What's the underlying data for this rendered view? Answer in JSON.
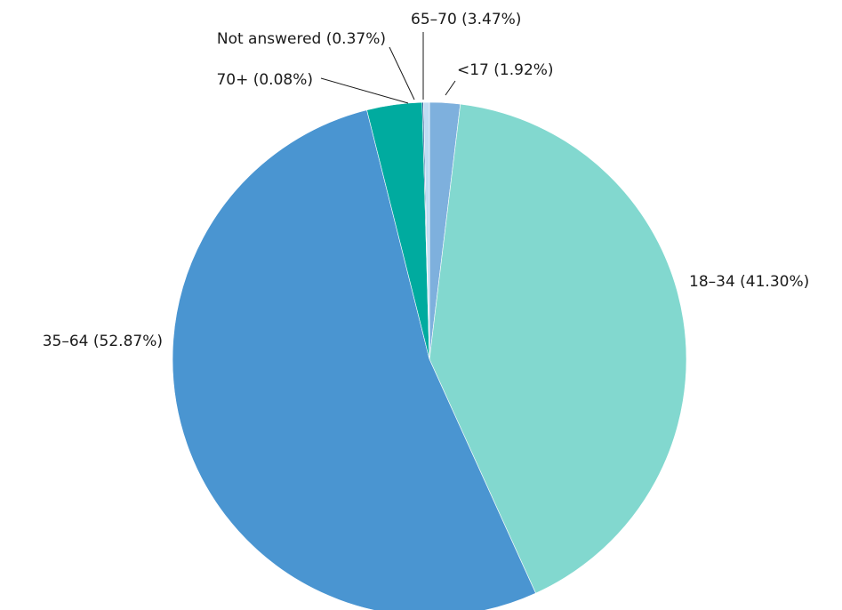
{
  "chart_data": {
    "type": "pie",
    "start_angle_deg": 0,
    "direction": "clockwise",
    "slices": [
      {
        "label": "<17",
        "value": 1.92,
        "label_text": "<17 (1.92%)",
        "color": "#7eb0dd"
      },
      {
        "label": "18–34",
        "value": 41.3,
        "label_text": "18–34 (41.30%)",
        "color": "#82d8cf"
      },
      {
        "label": "35–64",
        "value": 52.87,
        "label_text": "35–64 (52.87%)",
        "color": "#4a95d1"
      },
      {
        "label": "65–70",
        "value": 3.47,
        "label_text": "65–70 (3.47%)",
        "color": "#00ab9f"
      },
      {
        "label": "70+",
        "value": 0.08,
        "label_text": "70+ (0.08%)",
        "color": "#0a3f8c"
      },
      {
        "label": "Not answered",
        "value": 0.37,
        "label_text": "Not answered (0.37%)",
        "color": "#bfdcf3"
      }
    ]
  }
}
